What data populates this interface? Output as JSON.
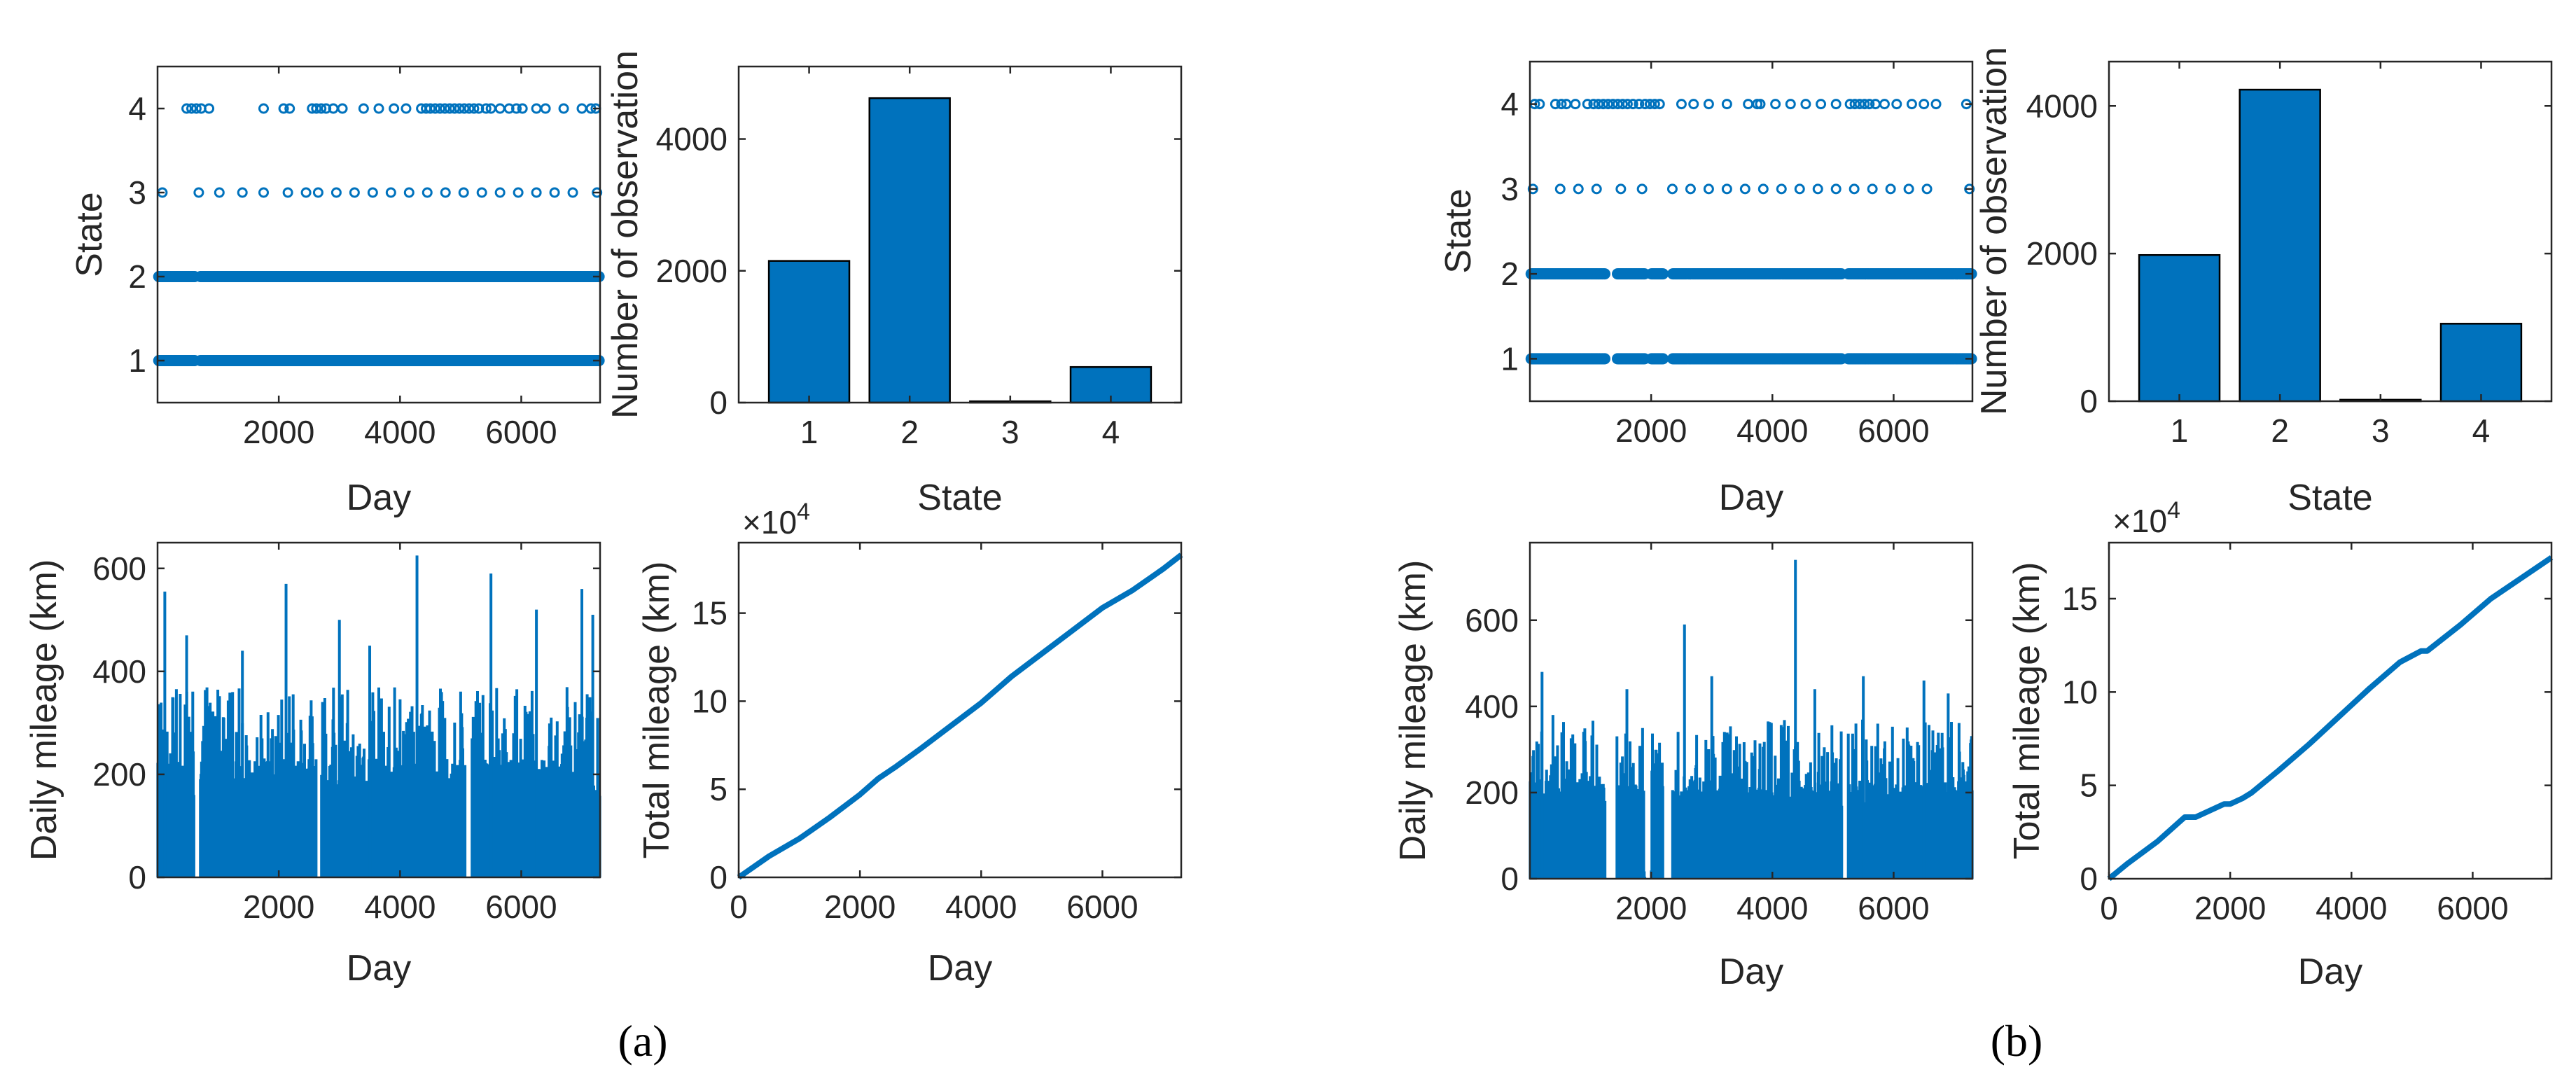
{
  "colors": {
    "series": "#0072BD",
    "axis": "#262626",
    "background": "#ffffff"
  },
  "panels": [
    {
      "label": "(a)",
      "charts": [
        {
          "type": "scatter",
          "xlabel": "Day",
          "ylabel": "State",
          "xlim": [
            0,
            7300
          ],
          "ylim": [
            0.5,
            4.5
          ],
          "xticks": [
            2000,
            4000,
            6000
          ],
          "yticks": [
            1,
            2,
            3,
            4
          ],
          "series": [
            {
              "y": 1,
              "pattern": "dense",
              "gaps": [
                [
                  620,
                  700
                ]
              ]
            },
            {
              "y": 2,
              "pattern": "dense",
              "gaps": [
                [
                  620,
                  700
                ]
              ]
            },
            {
              "y": 3,
              "pattern": "sparse",
              "x": [
                80,
                680,
                1020,
                1400,
                1750,
                2150,
                2450,
                2650,
                2950,
                3250,
                3550,
                3850,
                4150,
                4450,
                4750,
                5050,
                5350,
                5650,
                5950,
                6250,
                6550,
                6850,
                7250
              ]
            },
            {
              "y": 4,
              "pattern": "sparse",
              "x": [
                480,
                560,
                640,
                720,
                850,
                1750,
                2080,
                2180,
                2550,
                2620,
                2700,
                2780,
                2900,
                3050,
                3400,
                3650,
                3900,
                4100,
                4350,
                4430,
                4500,
                4580,
                4660,
                4740,
                4820,
                4900,
                4980,
                5060,
                5140,
                5220,
                5300,
                5420,
                5500,
                5650,
                5800,
                5920,
                6020,
                6250,
                6400,
                6700,
                7000,
                7150,
                7230
              ]
            }
          ]
        },
        {
          "type": "bar",
          "xlabel": "State",
          "ylabel": "Number of observation",
          "categories": [
            "1",
            "2",
            "3",
            "4"
          ],
          "values": [
            2150,
            4620,
            20,
            540
          ],
          "ylim": [
            0,
            5100
          ],
          "yticks": [
            0,
            2000,
            4000
          ]
        },
        {
          "type": "area",
          "xlabel": "Day",
          "ylabel": "Daily mileage (km)",
          "xlim": [
            0,
            7300
          ],
          "ylim": [
            0,
            650
          ],
          "xticks": [
            2000,
            4000,
            6000
          ],
          "yticks": [
            0,
            200,
            400,
            600
          ],
          "seed": 11,
          "gaps": [
            [
              600,
              700
            ],
            [
              2620,
              2700
            ],
            [
              5080,
              5180
            ]
          ],
          "spikes": [
            [
              120,
              555
            ],
            [
              480,
              470
            ],
            [
              1400,
              440
            ],
            [
              2120,
              570
            ],
            [
              3000,
              500
            ],
            [
              3500,
              450
            ],
            [
              4280,
              625
            ],
            [
              5500,
              590
            ],
            [
              6250,
              520
            ],
            [
              7000,
              560
            ],
            [
              7180,
              510
            ]
          ]
        },
        {
          "type": "line",
          "xlabel": "Day",
          "ylabel": "Total mileage (km)",
          "exponent": "×10",
          "exponent_power": "4",
          "xlim": [
            0,
            7300
          ],
          "ylim": [
            0,
            19
          ],
          "xticks": [
            0,
            2000,
            4000,
            6000
          ],
          "yticks": [
            0,
            5,
            10,
            15
          ],
          "x": [
            0,
            500,
            1000,
            1500,
            2000,
            2300,
            2600,
            3000,
            3500,
            4000,
            4500,
            5000,
            5500,
            6000,
            6500,
            7000,
            7300
          ],
          "y": [
            0,
            1.2,
            2.2,
            3.4,
            4.7,
            5.6,
            6.3,
            7.3,
            8.6,
            9.9,
            11.4,
            12.7,
            14.0,
            15.3,
            16.3,
            17.5,
            18.3
          ]
        }
      ]
    },
    {
      "label": "(b)",
      "charts": [
        {
          "type": "scatter",
          "xlabel": "Day",
          "ylabel": "State",
          "xlim": [
            0,
            7300
          ],
          "ylim": [
            0.5,
            4.5
          ],
          "xticks": [
            2000,
            4000,
            6000
          ],
          "yticks": [
            1,
            2,
            3,
            4
          ],
          "series": [
            {
              "y": 1,
              "pattern": "dense",
              "gaps": [
                [
                  1250,
                  1430
                ],
                [
                  1900,
                  2000
                ],
                [
                  2200,
                  2350
                ],
                [
                  5150,
                  5250
                ]
              ]
            },
            {
              "y": 2,
              "pattern": "dense",
              "gaps": [
                [
                  1250,
                  1430
                ],
                [
                  1900,
                  2000
                ],
                [
                  2200,
                  2350
                ],
                [
                  5150,
                  5250
                ]
              ]
            },
            {
              "y": 3,
              "pattern": "sparse",
              "x": [
                50,
                500,
                800,
                1100,
                1500,
                1850,
                2350,
                2650,
                2950,
                3250,
                3550,
                3850,
                4150,
                4450,
                4750,
                5050,
                5350,
                5650,
                5950,
                6250,
                6550,
                7250
              ]
            },
            {
              "y": 4,
              "pattern": "sparse",
              "x": [
                80,
                160,
                420,
                520,
                600,
                750,
                950,
                1050,
                1130,
                1210,
                1290,
                1370,
                1450,
                1530,
                1610,
                1700,
                1800,
                1900,
                1980,
                2060,
                2140,
                2500,
                2700,
                2950,
                3250,
                3600,
                3750,
                3800,
                4050,
                4300,
                4550,
                4800,
                5050,
                5280,
                5360,
                5440,
                5520,
                5600,
                5700,
                5850,
                6050,
                6300,
                6500,
                6700,
                7200
              ]
            }
          ]
        },
        {
          "type": "bar",
          "xlabel": "State",
          "ylabel": "Number of observation",
          "categories": [
            "1",
            "2",
            "3",
            "4"
          ],
          "values": [
            1980,
            4220,
            20,
            1050
          ],
          "ylim": [
            0,
            4600
          ],
          "yticks": [
            0,
            2000,
            4000
          ]
        },
        {
          "type": "area",
          "xlabel": "Day",
          "ylabel": "Daily mileage (km)",
          "xlim": [
            0,
            7300
          ],
          "ylim": [
            0,
            780
          ],
          "xticks": [
            2000,
            4000,
            6000
          ],
          "yticks": [
            0,
            200,
            400,
            600
          ],
          "seed": 29,
          "gaps": [
            [
              1250,
              1430
            ],
            [
              1900,
              2000
            ],
            [
              2200,
              2350
            ],
            [
              5150,
              5250
            ]
          ],
          "spikes": [
            [
              200,
              480
            ],
            [
              380,
              380
            ],
            [
              1600,
              440
            ],
            [
              2550,
              590
            ],
            [
              3000,
              470
            ],
            [
              4380,
              740
            ],
            [
              4700,
              440
            ],
            [
              5500,
              470
            ],
            [
              6500,
              460
            ],
            [
              6900,
              430
            ]
          ]
        },
        {
          "type": "line",
          "xlabel": "Day",
          "ylabel": "Total mileage (km)",
          "exponent": "×10",
          "exponent_power": "4",
          "xlim": [
            0,
            7300
          ],
          "ylim": [
            0,
            18
          ],
          "xticks": [
            0,
            2000,
            4000,
            6000
          ],
          "yticks": [
            0,
            5,
            10,
            15
          ],
          "x": [
            0,
            300,
            800,
            1250,
            1430,
            1900,
            2000,
            2200,
            2350,
            2800,
            3300,
            3800,
            4300,
            4800,
            5150,
            5250,
            5800,
            6300,
            6800,
            7300
          ],
          "y": [
            0,
            0.8,
            2.0,
            3.3,
            3.3,
            4.0,
            4.0,
            4.3,
            4.6,
            5.8,
            7.2,
            8.7,
            10.2,
            11.6,
            12.2,
            12.2,
            13.6,
            15.0,
            16.1,
            17.2
          ]
        }
      ]
    }
  ]
}
